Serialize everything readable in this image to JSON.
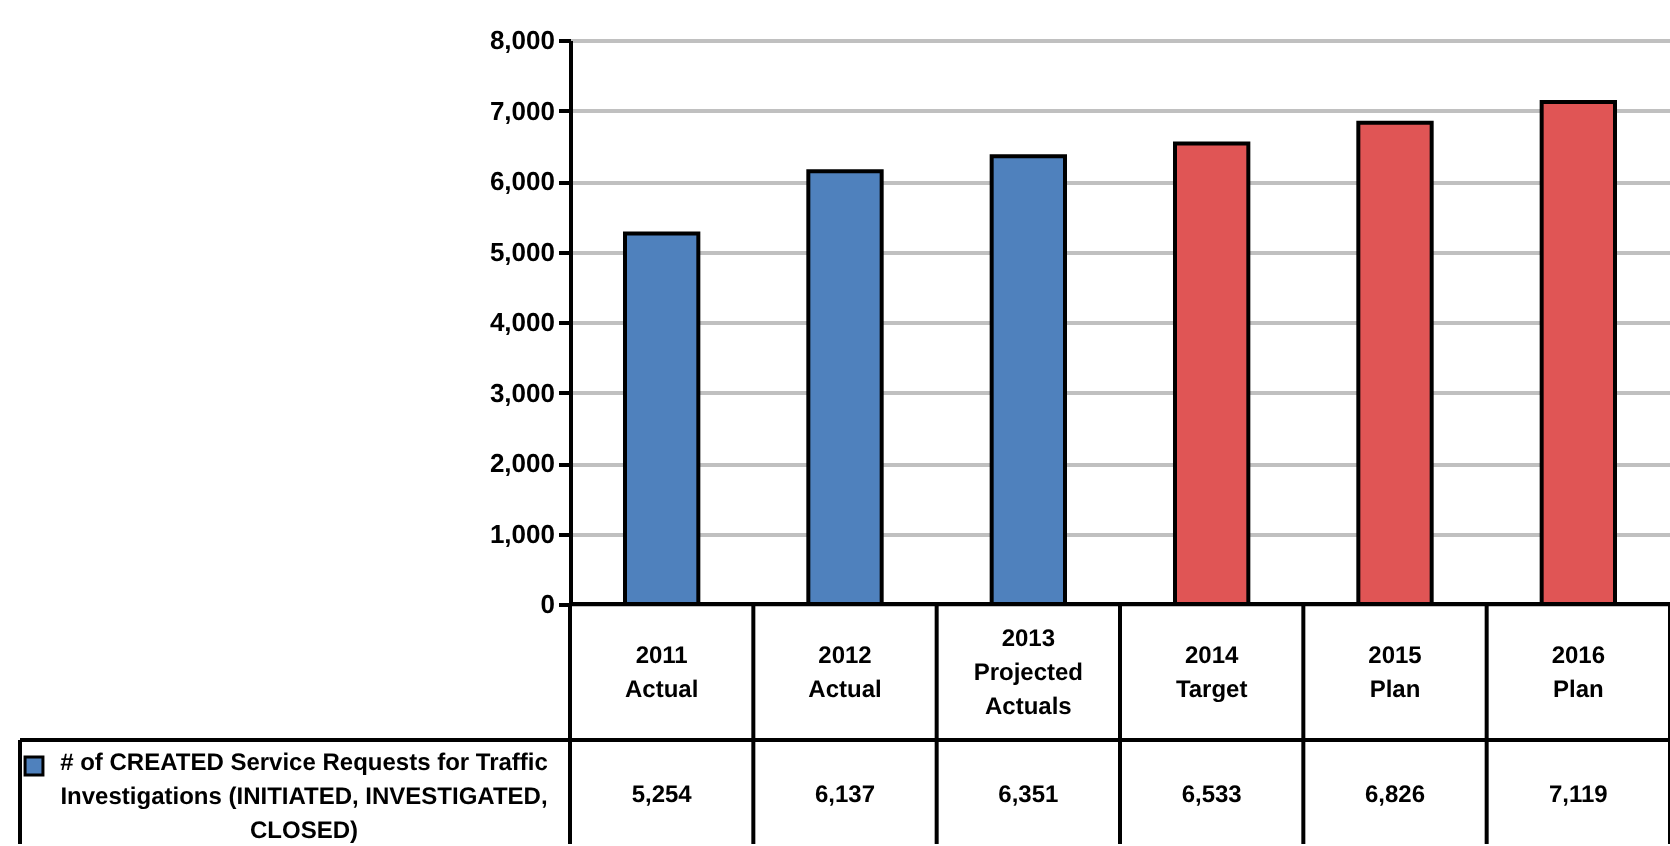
{
  "chart_data": {
    "type": "bar",
    "categories": [
      "2011 Actual",
      "2012 Actual",
      "2013 Projected Actuals",
      "2014 Target",
      "2015 Plan",
      "2016 Plan"
    ],
    "series": [
      {
        "name": "# of CREATED Service Requests for Traffic Investigations (INITIATED,  INVESTIGATED, CLOSED)",
        "color": "#4f81bd",
        "values": [
          5254,
          6137,
          6351,
          6533,
          6826,
          7119
        ],
        "colors": [
          "#4f81bd",
          "#4f81bd",
          "#4f81bd",
          "#e05555",
          "#e05555",
          "#e05555"
        ]
      }
    ],
    "ylim": [
      0,
      8000
    ],
    "yticks": [
      0,
      {
        "value": 1000,
        "label": "1,000"
      },
      {
        "value": 2000,
        "label": "2,000"
      },
      {
        "value": 3000,
        "label": "3,000"
      },
      {
        "value": 4000,
        "label": "4,000"
      },
      {
        "value": 5000,
        "label": "5,000"
      },
      {
        "value": 6000,
        "label": "6,000"
      },
      {
        "value": 7000,
        "label": "7,000"
      },
      {
        "value": 8000,
        "label": "8,000"
      }
    ],
    "grid": "y",
    "value_labels": [
      "5,254",
      "6,137",
      "6,351",
      "6,533",
      "6,826",
      "7,119"
    ],
    "legend": "bottom left"
  }
}
